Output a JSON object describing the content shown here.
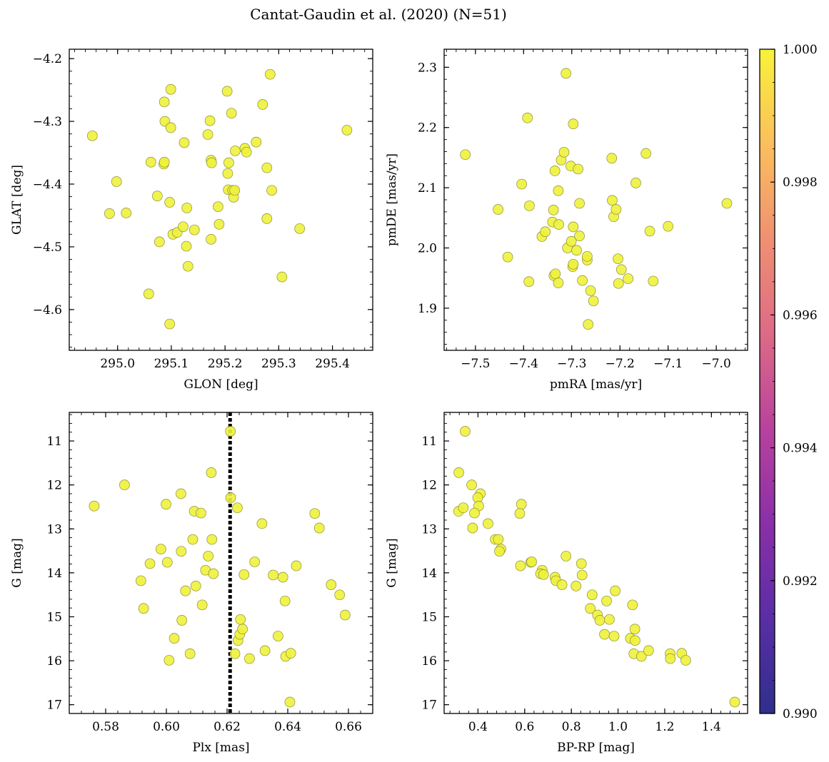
{
  "title": "Cantat-Gaudin et al. (2020) (N=51)",
  "colors": {
    "point_fill": "#eef23a",
    "point_edge": "#8c8c3a",
    "vline": "#000000",
    "cmap": [
      "#2e2f8c",
      "#5a2ea6",
      "#8a2fa8",
      "#b8429e",
      "#dd6a86",
      "#f09072",
      "#fbbf5c",
      "#f8f23a"
    ]
  },
  "colorbar": {
    "min": 0.99,
    "max": 1.0,
    "ticks": [
      "0.990",
      "0.992",
      "0.994",
      "0.996",
      "0.998",
      "1.000"
    ]
  },
  "chart_data": [
    {
      "type": "scatter",
      "id": "glon-glat",
      "xlabel": "GLON [deg]",
      "ylabel": "GLAT [deg]",
      "xlim": [
        294.91,
        295.475
      ],
      "ylim": [
        -4.665,
        -4.185
      ],
      "xticks": [
        295.0,
        295.1,
        295.2,
        295.3,
        295.4
      ],
      "xtick_labels": [
        "295.0",
        "295.1",
        "295.2",
        "295.3",
        "295.4"
      ],
      "yticks": [
        -4.2,
        -4.3,
        -4.4,
        -4.5,
        -4.6
      ],
      "ytick_labels": [
        "−4.2",
        "−4.3",
        "−4.4",
        "−4.5",
        "−4.6"
      ],
      "points": [
        [
          294.953,
          -4.323
        ],
        [
          294.985,
          -4.447
        ],
        [
          294.998,
          -4.396
        ],
        [
          295.016,
          -4.446
        ],
        [
          295.058,
          -4.575
        ],
        [
          295.062,
          -4.365
        ],
        [
          295.074,
          -4.419
        ],
        [
          295.078,
          -4.492
        ],
        [
          295.086,
          -4.368
        ],
        [
          295.087,
          -4.365
        ],
        [
          295.087,
          -4.269
        ],
        [
          295.088,
          -4.3
        ],
        [
          295.097,
          -4.429
        ],
        [
          295.097,
          -4.623
        ],
        [
          295.099,
          -4.31
        ],
        [
          295.099,
          -4.249
        ],
        [
          295.103,
          -4.48
        ],
        [
          295.111,
          -4.477
        ],
        [
          295.122,
          -4.468
        ],
        [
          295.124,
          -4.334
        ],
        [
          295.128,
          -4.499
        ],
        [
          295.129,
          -4.438
        ],
        [
          295.131,
          -4.531
        ],
        [
          295.143,
          -4.473
        ],
        [
          295.168,
          -4.321
        ],
        [
          295.172,
          -4.299
        ],
        [
          295.174,
          -4.362
        ],
        [
          295.175,
          -4.366
        ],
        [
          295.174,
          -4.488
        ],
        [
          295.187,
          -4.436
        ],
        [
          295.189,
          -4.464
        ],
        [
          295.204,
          -4.252
        ],
        [
          295.205,
          -4.383
        ],
        [
          295.206,
          -4.409
        ],
        [
          295.207,
          -4.366
        ],
        [
          295.212,
          -4.287
        ],
        [
          295.214,
          -4.41
        ],
        [
          295.216,
          -4.421
        ],
        [
          295.218,
          -4.41
        ],
        [
          295.219,
          -4.347
        ],
        [
          295.237,
          -4.343
        ],
        [
          295.24,
          -4.349
        ],
        [
          295.258,
          -4.333
        ],
        [
          295.27,
          -4.273
        ],
        [
          295.278,
          -4.374
        ],
        [
          295.278,
          -4.455
        ],
        [
          295.284,
          -4.225
        ],
        [
          295.287,
          -4.41
        ],
        [
          295.306,
          -4.548
        ],
        [
          295.339,
          -4.471
        ],
        [
          295.427,
          -4.314
        ]
      ]
    },
    {
      "type": "scatter",
      "id": "pmra-pmde",
      "xlabel": "pmRA [mas/yr]",
      "ylabel": "pmDE [mas/yr]",
      "xlim": [
        -7.565,
        -6.935
      ],
      "ylim": [
        1.83,
        2.33
      ],
      "xticks": [
        -7.5,
        -7.4,
        -7.3,
        -7.2,
        -7.1,
        -7.0
      ],
      "xtick_labels": [
        "−7.5",
        "−7.4",
        "−7.3",
        "−7.2",
        "−7.1",
        "−7.0"
      ],
      "yticks": [
        1.9,
        2.0,
        2.1,
        2.2,
        2.3
      ],
      "ytick_labels": [
        "1.9",
        "2.0",
        "2.1",
        "2.2",
        "2.3"
      ],
      "points": [
        [
          -7.521,
          2.155
        ],
        [
          -7.453,
          2.064
        ],
        [
          -7.433,
          1.985
        ],
        [
          -7.404,
          2.106
        ],
        [
          -7.392,
          2.216
        ],
        [
          -7.388,
          2.07
        ],
        [
          -7.389,
          1.944
        ],
        [
          -7.362,
          2.019
        ],
        [
          -7.355,
          2.027
        ],
        [
          -7.34,
          2.043
        ],
        [
          -7.338,
          2.063
        ],
        [
          -7.337,
          1.954
        ],
        [
          -7.334,
          1.957
        ],
        [
          -7.335,
          2.128
        ],
        [
          -7.328,
          2.095
        ],
        [
          -7.327,
          2.039
        ],
        [
          -7.328,
          1.942
        ],
        [
          -7.322,
          2.146
        ],
        [
          -7.316,
          2.159
        ],
        [
          -7.312,
          2.29
        ],
        [
          -7.309,
          2.0
        ],
        [
          -7.302,
          2.136
        ],
        [
          -7.301,
          2.011
        ],
        [
          -7.298,
          1.969
        ],
        [
          -7.297,
          2.206
        ],
        [
          -7.297,
          1.973
        ],
        [
          -7.297,
          2.035
        ],
        [
          -7.29,
          1.996
        ],
        [
          -7.287,
          2.131
        ],
        [
          -7.284,
          2.074
        ],
        [
          -7.284,
          2.02
        ],
        [
          -7.278,
          1.946
        ],
        [
          -7.268,
          1.98
        ],
        [
          -7.268,
          1.986
        ],
        [
          -7.266,
          1.873
        ],
        [
          -7.261,
          1.929
        ],
        [
          -7.255,
          1.912
        ],
        [
          -7.217,
          2.149
        ],
        [
          -7.216,
          2.079
        ],
        [
          -7.213,
          2.052
        ],
        [
          -7.208,
          2.064
        ],
        [
          -7.204,
          1.982
        ],
        [
          -7.203,
          1.941
        ],
        [
          -7.197,
          1.964
        ],
        [
          -7.183,
          1.949
        ],
        [
          -7.167,
          2.108
        ],
        [
          -7.146,
          2.157
        ],
        [
          -7.138,
          2.028
        ],
        [
          -7.131,
          1.945
        ],
        [
          -7.1,
          2.036
        ],
        [
          -6.978,
          2.074
        ]
      ]
    },
    {
      "type": "scatter",
      "id": "plx-g",
      "xlabel": "Plx [mas]",
      "ylabel": "G [mag]",
      "xlim": [
        0.568,
        0.668
      ],
      "ylim": [
        17.2,
        10.35
      ],
      "y_inverted": true,
      "vline_x": 0.621,
      "xticks": [
        0.58,
        0.6,
        0.62,
        0.64,
        0.66
      ],
      "xtick_labels": [
        "0.58",
        "0.60",
        "0.62",
        "0.64",
        "0.66"
      ],
      "yticks": [
        11,
        12,
        13,
        14,
        15,
        16,
        17
      ],
      "ytick_labels": [
        "11",
        "12",
        "13",
        "14",
        "15",
        "16",
        "17"
      ],
      "points": [
        [
          0.5762,
          12.48
        ],
        [
          0.5862,
          12.0
        ],
        [
          0.5916,
          14.18
        ],
        [
          0.5925,
          14.81
        ],
        [
          0.5946,
          13.79
        ],
        [
          0.5982,
          13.46
        ],
        [
          0.5999,
          12.44
        ],
        [
          0.6003,
          13.76
        ],
        [
          0.6009,
          15.99
        ],
        [
          0.6026,
          15.49
        ],
        [
          0.6048,
          12.2
        ],
        [
          0.6049,
          13.51
        ],
        [
          0.6051,
          15.08
        ],
        [
          0.6063,
          14.41
        ],
        [
          0.6078,
          15.84
        ],
        [
          0.6087,
          13.24
        ],
        [
          0.6092,
          12.6
        ],
        [
          0.6097,
          14.3
        ],
        [
          0.6114,
          12.64
        ],
        [
          0.6118,
          14.73
        ],
        [
          0.6129,
          13.94
        ],
        [
          0.6138,
          13.62
        ],
        [
          0.6148,
          11.72
        ],
        [
          0.615,
          13.24
        ],
        [
          0.6155,
          14.02
        ],
        [
          0.6211,
          10.78
        ],
        [
          0.6212,
          12.29
        ],
        [
          0.6226,
          15.84
        ],
        [
          0.6234,
          12.52
        ],
        [
          0.6236,
          15.54
        ],
        [
          0.6244,
          15.06
        ],
        [
          0.6242,
          15.4
        ],
        [
          0.6251,
          15.28
        ],
        [
          0.6256,
          14.04
        ],
        [
          0.6274,
          15.95
        ],
        [
          0.6291,
          13.75
        ],
        [
          0.6315,
          12.88
        ],
        [
          0.6325,
          15.77
        ],
        [
          0.6352,
          14.05
        ],
        [
          0.6368,
          15.44
        ],
        [
          0.6384,
          14.1
        ],
        [
          0.6391,
          14.64
        ],
        [
          0.6393,
          15.9
        ],
        [
          0.6407,
          16.94
        ],
        [
          0.641,
          15.83
        ],
        [
          0.6428,
          13.84
        ],
        [
          0.6489,
          12.65
        ],
        [
          0.6504,
          12.98
        ],
        [
          0.6543,
          14.27
        ],
        [
          0.6571,
          14.5
        ],
        [
          0.6589,
          14.96
        ]
      ]
    },
    {
      "type": "scatter",
      "id": "bprp-g",
      "xlabel": "BP-RP [mag]",
      "ylabel": "G [mag]",
      "xlim": [
        0.255,
        1.555
      ],
      "ylim": [
        17.2,
        10.35
      ],
      "y_inverted": true,
      "xticks": [
        0.4,
        0.6,
        0.8,
        1.0,
        1.2,
        1.4
      ],
      "xtick_labels": [
        "0.4",
        "0.6",
        "0.8",
        "1.0",
        "1.2",
        "1.4"
      ],
      "yticks": [
        11,
        12,
        13,
        14,
        15,
        16,
        17
      ],
      "ytick_labels": [
        "11",
        "12",
        "13",
        "14",
        "15",
        "16",
        "17"
      ],
      "points": [
        [
          0.345,
          10.78
        ],
        [
          0.318,
          11.72
        ],
        [
          0.317,
          12.6
        ],
        [
          0.337,
          12.52
        ],
        [
          0.373,
          12.0
        ],
        [
          0.41,
          12.2
        ],
        [
          0.399,
          12.29
        ],
        [
          0.403,
          12.48
        ],
        [
          0.385,
          12.64
        ],
        [
          0.377,
          12.98
        ],
        [
          0.443,
          12.88
        ],
        [
          0.474,
          13.24
        ],
        [
          0.487,
          13.24
        ],
        [
          0.498,
          13.46
        ],
        [
          0.492,
          13.51
        ],
        [
          0.586,
          12.44
        ],
        [
          0.579,
          12.65
        ],
        [
          0.582,
          13.84
        ],
        [
          0.626,
          13.76
        ],
        [
          0.63,
          13.75
        ],
        [
          0.675,
          13.94
        ],
        [
          0.668,
          14.02
        ],
        [
          0.681,
          14.04
        ],
        [
          0.73,
          14.1
        ],
        [
          0.734,
          14.18
        ],
        [
          0.76,
          14.27
        ],
        [
          0.777,
          13.62
        ],
        [
          0.82,
          14.3
        ],
        [
          0.843,
          13.79
        ],
        [
          0.846,
          14.05
        ],
        [
          0.881,
          14.81
        ],
        [
          0.889,
          14.5
        ],
        [
          0.912,
          14.96
        ],
        [
          0.922,
          15.08
        ],
        [
          0.942,
          15.4
        ],
        [
          0.951,
          14.64
        ],
        [
          0.963,
          15.06
        ],
        [
          0.983,
          15.44
        ],
        [
          0.988,
          14.41
        ],
        [
          1.053,
          15.49
        ],
        [
          1.062,
          14.73
        ],
        [
          1.072,
          15.28
        ],
        [
          1.073,
          15.54
        ],
        [
          1.068,
          15.84
        ],
        [
          1.1,
          15.9
        ],
        [
          1.131,
          15.77
        ],
        [
          1.223,
          15.84
        ],
        [
          1.224,
          15.95
        ],
        [
          1.273,
          15.83
        ],
        [
          1.29,
          15.99
        ],
        [
          1.5,
          16.94
        ]
      ]
    }
  ]
}
